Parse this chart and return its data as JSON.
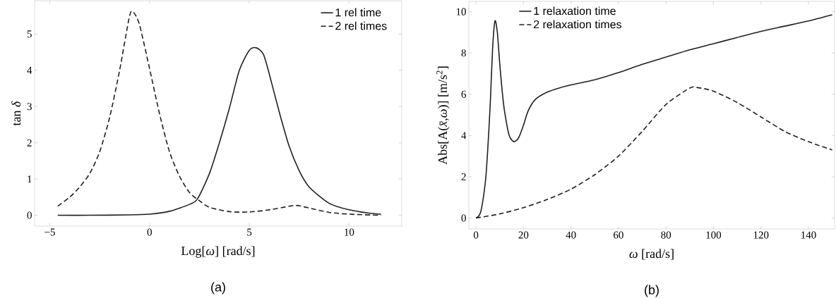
{
  "chart_data": [
    {
      "type": "line",
      "xlabel": "Log[*ω*] [rad/s]",
      "ylabel": "tan *δ*",
      "annotations": [
        "(a)"
      ],
      "xlim": [
        -5.76,
        12.64
      ],
      "ylim": [
        -0.3,
        5.92
      ],
      "xticks": [
        {
          "value": -5,
          "label": "−5"
        },
        0,
        5,
        10
      ],
      "yticks": [
        0,
        1,
        2,
        3,
        4,
        5
      ],
      "legend": "top right",
      "series": [
        {
          "name": "1 rel time",
          "color": "#231f20",
          "line_style": "solid",
          "x": [
            -4.6,
            -3,
            -1,
            0,
            1,
            2,
            2.4,
            3,
            3.5,
            4,
            4.5,
            5,
            5.35,
            5.7,
            6,
            6.5,
            7,
            7.5,
            8,
            9,
            10,
            11,
            11.6
          ],
          "values": [
            0,
            0,
            0.01,
            0.03,
            0.11,
            0.3,
            0.45,
            1.15,
            2.0,
            2.95,
            4.0,
            4.55,
            4.62,
            4.45,
            3.9,
            2.85,
            1.9,
            1.23,
            0.78,
            0.33,
            0.15,
            0.06,
            0.03
          ]
        },
        {
          "name": "2 rel times",
          "color": "#231f20",
          "line_style": "dashed",
          "x": [
            -4.6,
            -4,
            -3.5,
            -3,
            -2.5,
            -2,
            -1.5,
            -1,
            -0.8,
            -0.5,
            0,
            0.5,
            1,
            1.5,
            2,
            2.5,
            3,
            4,
            5,
            6,
            7,
            7.4,
            8,
            9,
            10,
            11.6
          ],
          "values": [
            0.25,
            0.5,
            0.78,
            1.15,
            1.75,
            2.7,
            4.0,
            5.5,
            5.6,
            5.25,
            4.05,
            2.8,
            1.75,
            1.08,
            0.63,
            0.4,
            0.22,
            0.1,
            0.09,
            0.15,
            0.25,
            0.27,
            0.2,
            0.08,
            0.03,
            0
          ]
        }
      ]
    },
    {
      "type": "line",
      "xlabel": "*ω* [rad/s]",
      "ylabel": "Abs[A(*x̄*,*ω*)] [m/s$^{2}$]",
      "annotations": [
        "(b)"
      ],
      "xlim": [
        -3,
        151
      ],
      "ylim": [
        -0.53,
        10.5
      ],
      "xticks": [
        0,
        20,
        40,
        60,
        80,
        100,
        120,
        140
      ],
      "yticks": [
        0,
        2,
        4,
        6,
        8,
        10
      ],
      "legend": "top left",
      "series": [
        {
          "name": "1 relaxation time",
          "color": "#231f20",
          "line_style": "solid",
          "x": [
            0,
            2,
            4,
            5,
            6,
            7,
            8,
            9,
            10,
            11,
            12,
            14,
            16,
            18,
            20,
            22,
            25,
            30,
            35,
            40,
            50,
            60,
            70,
            80,
            90,
            100,
            110,
            120,
            130,
            140,
            150
          ],
          "values": [
            0,
            0.3,
            1.8,
            3.4,
            5.5,
            8.2,
            9.55,
            9.0,
            7.5,
            6.2,
            5.2,
            4.0,
            3.7,
            3.9,
            4.5,
            5.2,
            5.75,
            6.1,
            6.3,
            6.45,
            6.7,
            7.05,
            7.45,
            7.8,
            8.15,
            8.45,
            8.75,
            9.05,
            9.3,
            9.55,
            9.85
          ]
        },
        {
          "name": "2 relaxation times",
          "color": "#231f20",
          "line_style": "dashed",
          "x": [
            0,
            10,
            20,
            30,
            40,
            50,
            60,
            70,
            80,
            90,
            93,
            100,
            110,
            120,
            130,
            140,
            150
          ],
          "values": [
            0,
            0.2,
            0.5,
            0.9,
            1.4,
            2.1,
            3.0,
            4.2,
            5.5,
            6.3,
            6.33,
            6.15,
            5.6,
            4.9,
            4.2,
            3.7,
            3.3
          ]
        }
      ]
    }
  ]
}
